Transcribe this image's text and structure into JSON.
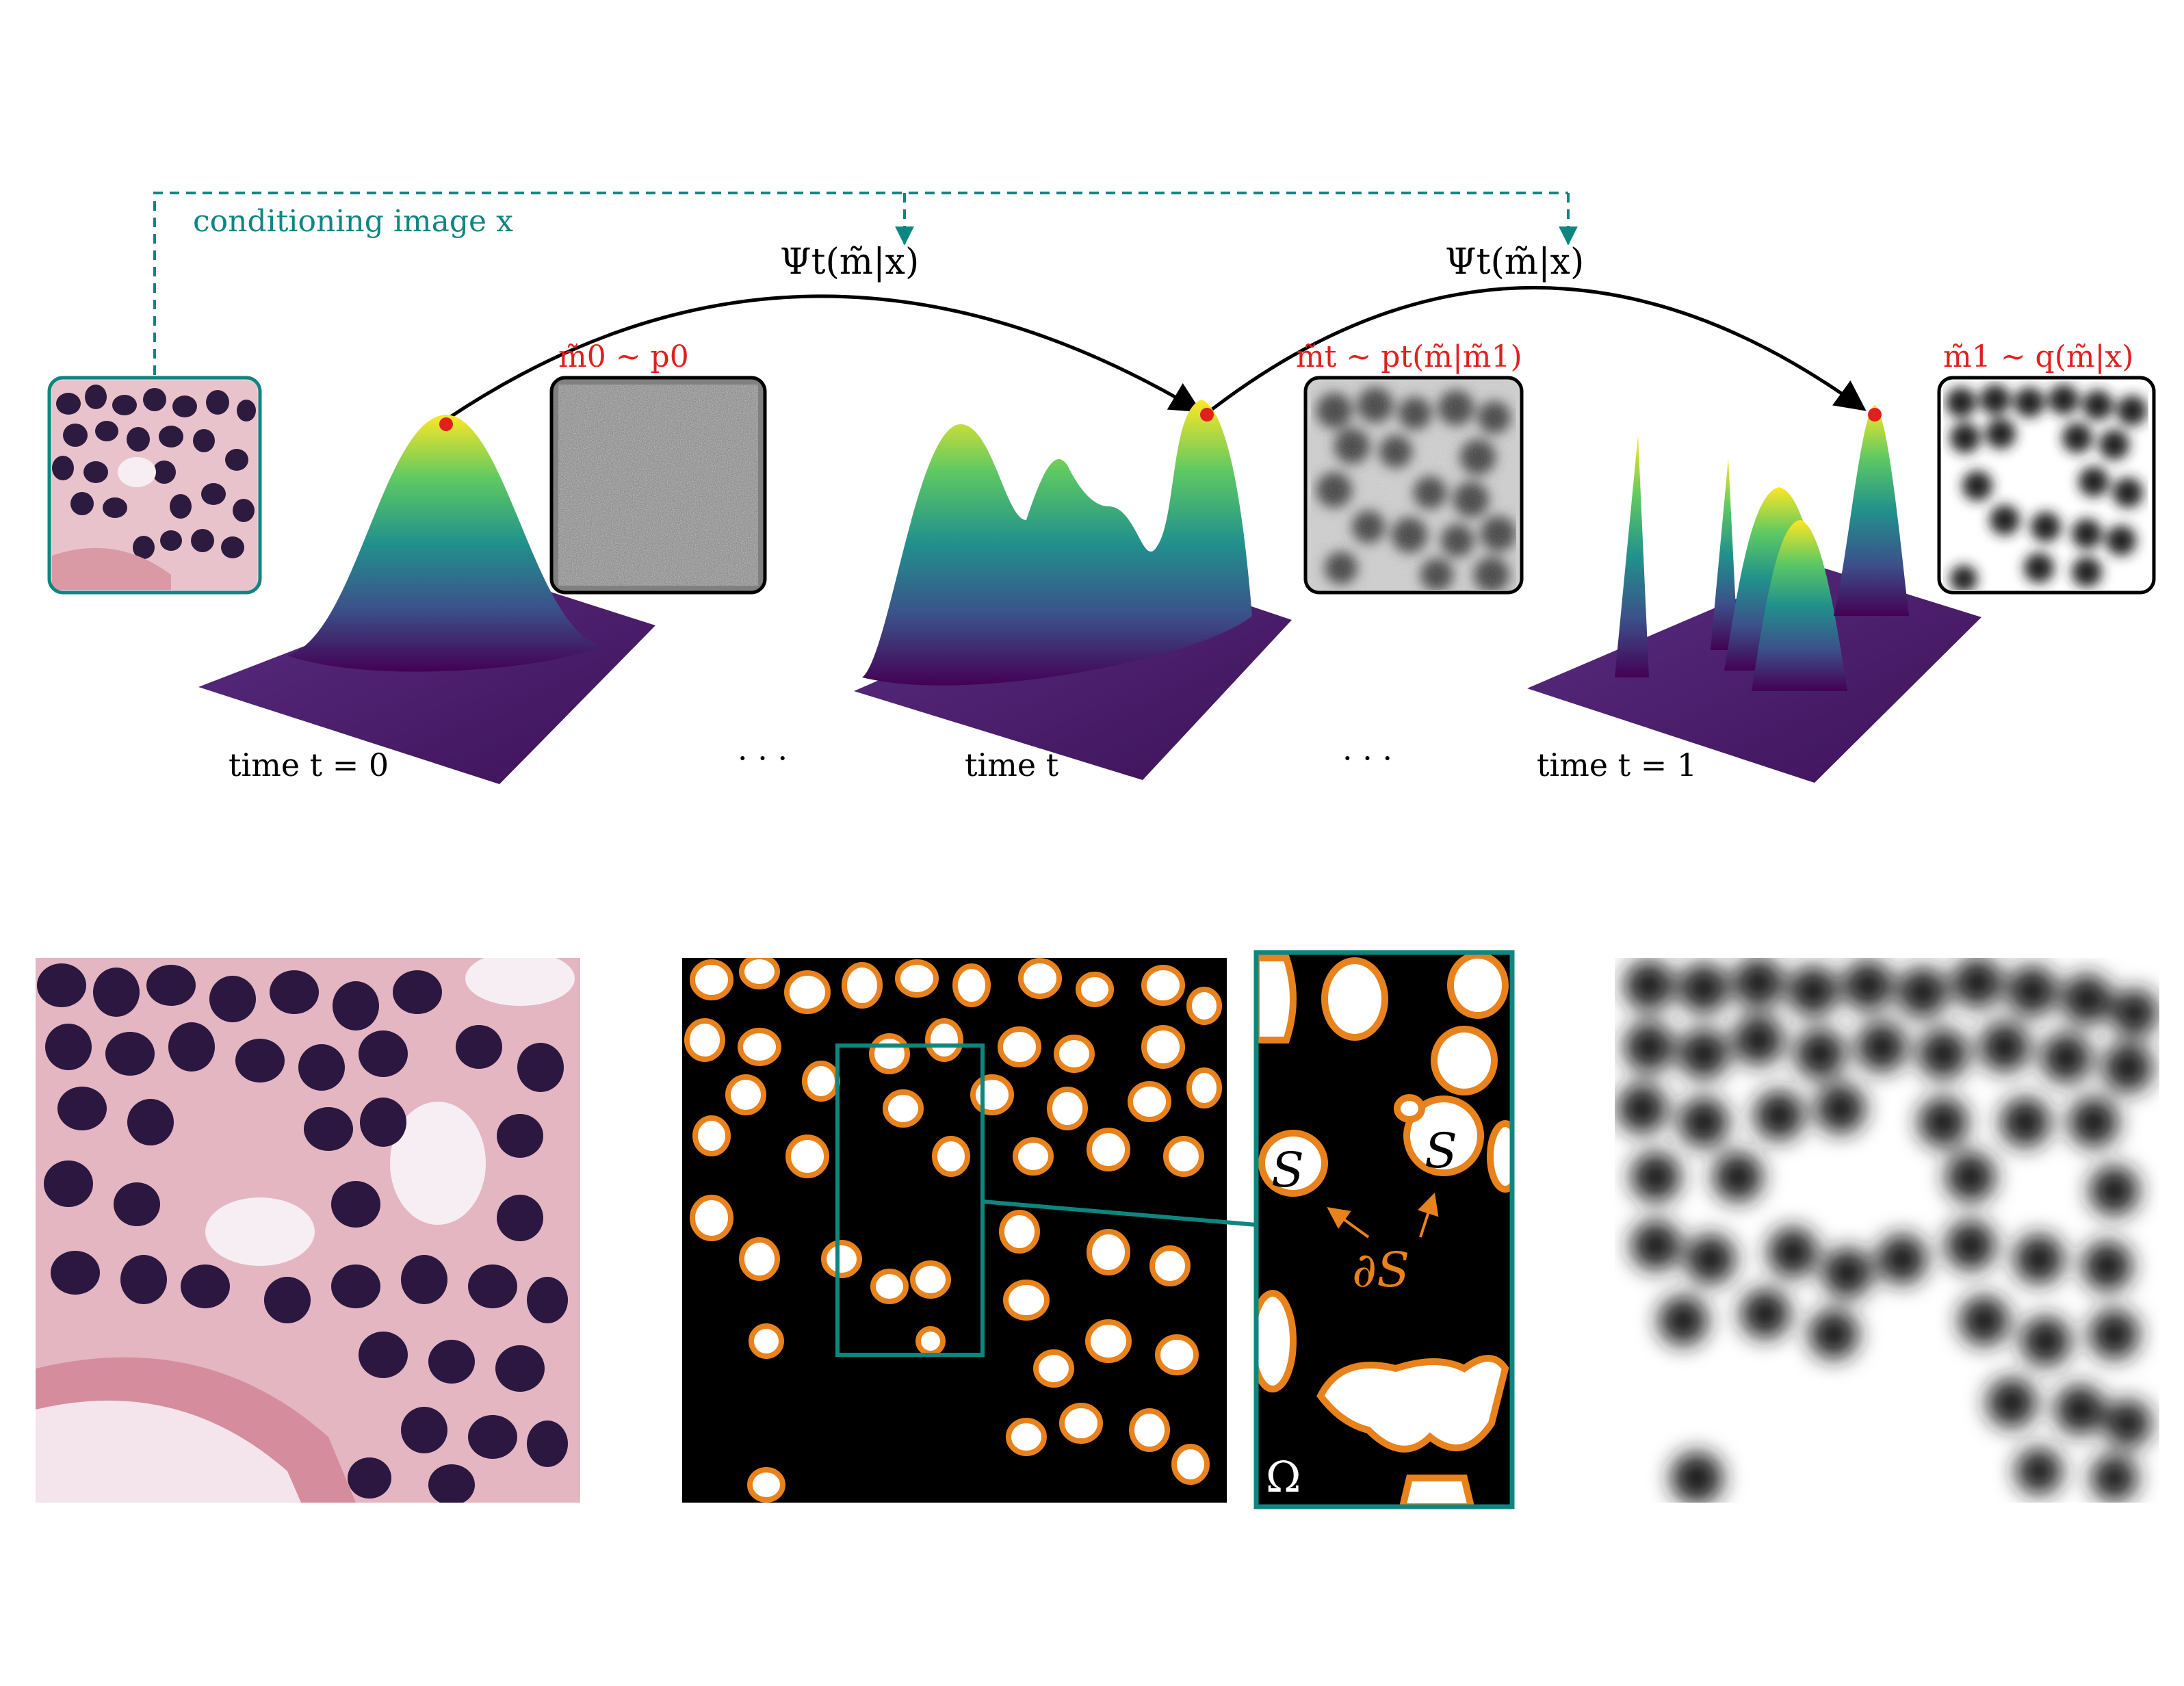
{
  "labels": {
    "conditioning": "conditioning image x",
    "psi_left": "Ψt(m̃|x)",
    "psi_right": "Ψt(m̃|x)",
    "m0": "m̃0 ∼ p0",
    "mt": "m̃t ∼ pt(m̃|m̃1)",
    "m1": "m̃1 ∼ q(m̃|x)",
    "time0": "time t = 0",
    "timet": "time t",
    "time1": "time t = 1",
    "dots1": "· · ·",
    "dots2": "· · ·",
    "s1": "S",
    "s2": "S",
    "boundary": "∂S",
    "omega": "Ω"
  },
  "colors": {
    "teal": "#0e8680",
    "red": "#e0201f",
    "orange": "#e8821c",
    "black": "#000000",
    "viridis_low": "#440154",
    "viridis_mid": "#21918c",
    "viridis_high": "#fde725"
  }
}
